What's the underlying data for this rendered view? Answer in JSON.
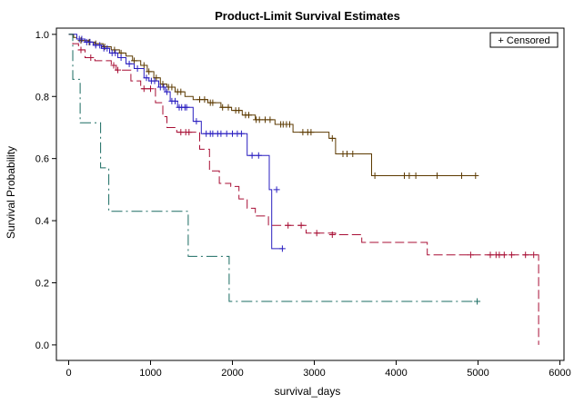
{
  "chart_data": {
    "type": "line",
    "title": "Product-Limit Survival Estimates",
    "xlabel": "survival_days",
    "ylabel": "Survival Probability",
    "xlim": [
      -150,
      6050
    ],
    "ylim": [
      -0.05,
      1.02
    ],
    "xticks": [
      0,
      1000,
      2000,
      3000,
      4000,
      5000,
      6000
    ],
    "xtick_labels": [
      "0",
      "1000",
      "2000",
      "3000",
      "4000",
      "5000",
      "6000"
    ],
    "yticks": [
      0.0,
      0.2,
      0.4,
      0.6,
      0.8,
      1.0
    ],
    "ytick_labels": [
      "0.0",
      "0.2",
      "0.4",
      "0.6",
      "0.8",
      "1.0"
    ],
    "grid": false,
    "legend": {
      "label": "+ Censored",
      "placement": "top-right"
    },
    "series": [
      {
        "color": "#5c3a00",
        "dash": "",
        "steps": [
          [
            0,
            1.0
          ],
          [
            60,
            0.99
          ],
          [
            100,
            0.985
          ],
          [
            160,
            0.98
          ],
          [
            240,
            0.975
          ],
          [
            320,
            0.97
          ],
          [
            420,
            0.96
          ],
          [
            520,
            0.95
          ],
          [
            620,
            0.94
          ],
          [
            700,
            0.93
          ],
          [
            780,
            0.915
          ],
          [
            880,
            0.9
          ],
          [
            960,
            0.88
          ],
          [
            1040,
            0.86
          ],
          [
            1120,
            0.84
          ],
          [
            1200,
            0.83
          ],
          [
            1300,
            0.815
          ],
          [
            1420,
            0.8
          ],
          [
            1520,
            0.79
          ],
          [
            1700,
            0.78
          ],
          [
            1860,
            0.765
          ],
          [
            1990,
            0.755
          ],
          [
            2120,
            0.74
          ],
          [
            2280,
            0.725
          ],
          [
            2520,
            0.71
          ],
          [
            2740,
            0.685
          ],
          [
            3180,
            0.665
          ],
          [
            3260,
            0.615
          ],
          [
            3700,
            0.545
          ],
          [
            5000,
            0.545
          ]
        ],
        "censored": [
          [
            150,
            0.98
          ],
          [
            250,
            0.975
          ],
          [
            330,
            0.97
          ],
          [
            440,
            0.96
          ],
          [
            560,
            0.95
          ],
          [
            640,
            0.94
          ],
          [
            800,
            0.915
          ],
          [
            920,
            0.9
          ],
          [
            980,
            0.88
          ],
          [
            1070,
            0.86
          ],
          [
            1150,
            0.84
          ],
          [
            1220,
            0.83
          ],
          [
            1260,
            0.83
          ],
          [
            1330,
            0.815
          ],
          [
            1370,
            0.815
          ],
          [
            1600,
            0.79
          ],
          [
            1660,
            0.79
          ],
          [
            1730,
            0.78
          ],
          [
            1760,
            0.78
          ],
          [
            1880,
            0.765
          ],
          [
            1950,
            0.765
          ],
          [
            2040,
            0.755
          ],
          [
            2080,
            0.755
          ],
          [
            2160,
            0.74
          ],
          [
            2200,
            0.74
          ],
          [
            2290,
            0.725
          ],
          [
            2330,
            0.725
          ],
          [
            2400,
            0.725
          ],
          [
            2460,
            0.725
          ],
          [
            2590,
            0.71
          ],
          [
            2620,
            0.71
          ],
          [
            2660,
            0.71
          ],
          [
            2700,
            0.71
          ],
          [
            2860,
            0.685
          ],
          [
            2920,
            0.685
          ],
          [
            2960,
            0.685
          ],
          [
            3220,
            0.665
          ],
          [
            3350,
            0.615
          ],
          [
            3400,
            0.615
          ],
          [
            3470,
            0.615
          ],
          [
            3740,
            0.545
          ],
          [
            4100,
            0.545
          ],
          [
            4160,
            0.545
          ],
          [
            4240,
            0.545
          ],
          [
            4500,
            0.545
          ],
          [
            4800,
            0.545
          ],
          [
            4970,
            0.545
          ]
        ]
      },
      {
        "color": "#2a1fc0",
        "dash": "",
        "steps": [
          [
            0,
            1.0
          ],
          [
            100,
            0.985
          ],
          [
            200,
            0.975
          ],
          [
            300,
            0.965
          ],
          [
            400,
            0.955
          ],
          [
            500,
            0.94
          ],
          [
            600,
            0.925
          ],
          [
            700,
            0.905
          ],
          [
            800,
            0.89
          ],
          [
            920,
            0.86
          ],
          [
            980,
            0.85
          ],
          [
            1100,
            0.83
          ],
          [
            1180,
            0.815
          ],
          [
            1240,
            0.785
          ],
          [
            1330,
            0.765
          ],
          [
            1520,
            0.72
          ],
          [
            1620,
            0.68
          ],
          [
            2180,
            0.61
          ],
          [
            2450,
            0.5
          ],
          [
            2480,
            0.31
          ],
          [
            2620,
            0.31
          ]
        ],
        "censored": [
          [
            130,
            0.985
          ],
          [
            160,
            0.985
          ],
          [
            220,
            0.975
          ],
          [
            260,
            0.975
          ],
          [
            330,
            0.965
          ],
          [
            380,
            0.965
          ],
          [
            430,
            0.955
          ],
          [
            470,
            0.955
          ],
          [
            530,
            0.94
          ],
          [
            570,
            0.94
          ],
          [
            640,
            0.925
          ],
          [
            740,
            0.905
          ],
          [
            840,
            0.89
          ],
          [
            950,
            0.86
          ],
          [
            1010,
            0.85
          ],
          [
            1050,
            0.85
          ],
          [
            1120,
            0.83
          ],
          [
            1160,
            0.83
          ],
          [
            1200,
            0.815
          ],
          [
            1260,
            0.785
          ],
          [
            1300,
            0.785
          ],
          [
            1350,
            0.765
          ],
          [
            1380,
            0.765
          ],
          [
            1420,
            0.765
          ],
          [
            1440,
            0.765
          ],
          [
            1560,
            0.72
          ],
          [
            1680,
            0.68
          ],
          [
            1730,
            0.68
          ],
          [
            1760,
            0.68
          ],
          [
            1820,
            0.68
          ],
          [
            1860,
            0.68
          ],
          [
            1930,
            0.68
          ],
          [
            2000,
            0.68
          ],
          [
            2060,
            0.68
          ],
          [
            2110,
            0.68
          ],
          [
            2240,
            0.61
          ],
          [
            2320,
            0.61
          ],
          [
            2540,
            0.5
          ],
          [
            2610,
            0.31
          ]
        ]
      },
      {
        "color": "#a80f35",
        "dash": "10 4",
        "steps": [
          [
            0,
            1.0
          ],
          [
            50,
            0.97
          ],
          [
            120,
            0.95
          ],
          [
            200,
            0.925
          ],
          [
            320,
            0.915
          ],
          [
            520,
            0.9
          ],
          [
            580,
            0.885
          ],
          [
            760,
            0.85
          ],
          [
            880,
            0.825
          ],
          [
            1060,
            0.78
          ],
          [
            1150,
            0.735
          ],
          [
            1200,
            0.7
          ],
          [
            1320,
            0.685
          ],
          [
            1600,
            0.63
          ],
          [
            1720,
            0.56
          ],
          [
            1840,
            0.52
          ],
          [
            1980,
            0.51
          ],
          [
            2080,
            0.47
          ],
          [
            2180,
            0.44
          ],
          [
            2280,
            0.415
          ],
          [
            2440,
            0.385
          ],
          [
            2900,
            0.36
          ],
          [
            3260,
            0.355
          ],
          [
            3580,
            0.33
          ],
          [
            4380,
            0.29
          ],
          [
            5740,
            0.29
          ],
          [
            5740,
            0.0
          ]
        ],
        "censored": [
          [
            150,
            0.95
          ],
          [
            270,
            0.925
          ],
          [
            550,
            0.9
          ],
          [
            600,
            0.885
          ],
          [
            920,
            0.825
          ],
          [
            1000,
            0.825
          ],
          [
            1370,
            0.685
          ],
          [
            1430,
            0.685
          ],
          [
            1470,
            0.685
          ],
          [
            2680,
            0.385
          ],
          [
            2840,
            0.385
          ],
          [
            3030,
            0.36
          ],
          [
            3220,
            0.355
          ],
          [
            4910,
            0.29
          ],
          [
            5150,
            0.29
          ],
          [
            5220,
            0.29
          ],
          [
            5260,
            0.29
          ],
          [
            5320,
            0.29
          ],
          [
            5410,
            0.29
          ],
          [
            5580,
            0.29
          ],
          [
            5680,
            0.29
          ]
        ]
      },
      {
        "color": "#1a6b62",
        "dash": "12 4 2 4",
        "steps": [
          [
            0,
            1.0
          ],
          [
            50,
            0.855
          ],
          [
            140,
            0.715
          ],
          [
            390,
            0.57
          ],
          [
            490,
            0.43
          ],
          [
            1460,
            0.285
          ],
          [
            1960,
            0.14
          ],
          [
            5000,
            0.14
          ]
        ],
        "censored": [
          [
            4990,
            0.14
          ]
        ]
      }
    ]
  }
}
